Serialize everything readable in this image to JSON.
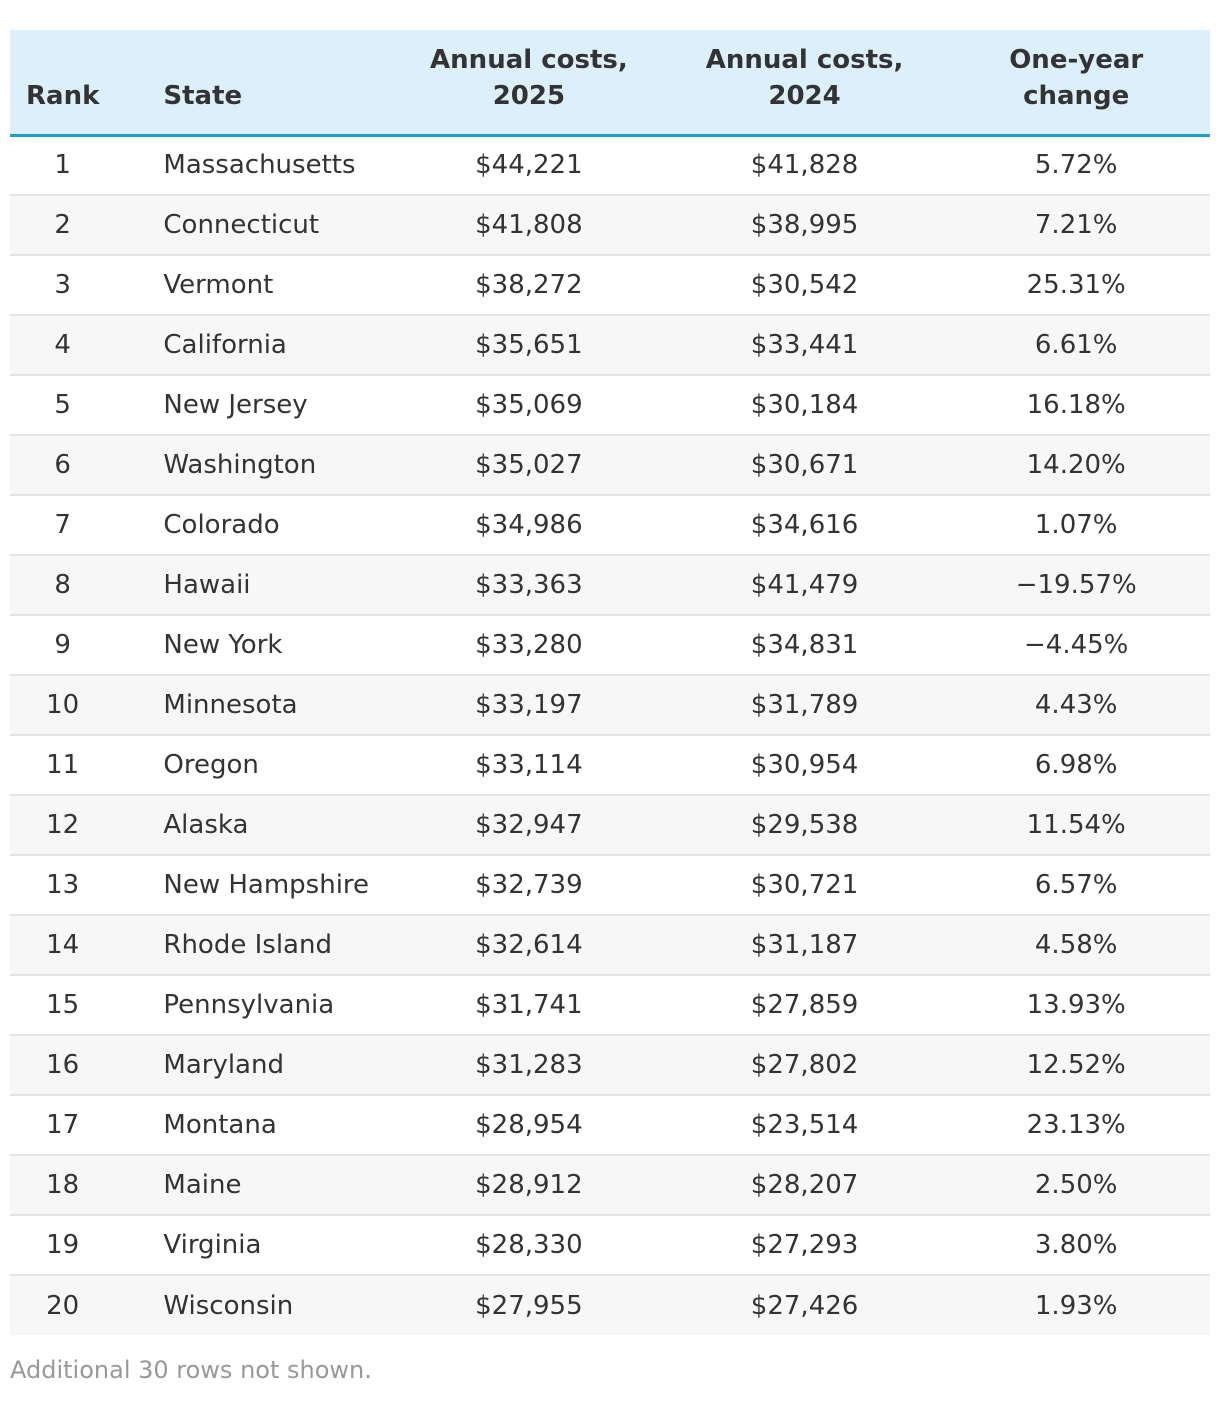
{
  "table": {
    "headers": {
      "rank": "Rank",
      "state": "State",
      "costs_2025_line1": "Annual costs,",
      "costs_2025_line2": "2025",
      "costs_2024_line1": "Annual costs,",
      "costs_2024_line2": "2024",
      "change_line1": "One-year",
      "change_line2": "change"
    },
    "rows": [
      {
        "rank": "1",
        "state": "Massachusetts",
        "cost_2025": "$44,221",
        "cost_2024": "$41,828",
        "change": "5.72%"
      },
      {
        "rank": "2",
        "state": "Connecticut",
        "cost_2025": "$41,808",
        "cost_2024": "$38,995",
        "change": "7.21%"
      },
      {
        "rank": "3",
        "state": "Vermont",
        "cost_2025": "$38,272",
        "cost_2024": "$30,542",
        "change": "25.31%"
      },
      {
        "rank": "4",
        "state": "California",
        "cost_2025": "$35,651",
        "cost_2024": "$33,441",
        "change": "6.61%"
      },
      {
        "rank": "5",
        "state": "New Jersey",
        "cost_2025": "$35,069",
        "cost_2024": "$30,184",
        "change": "16.18%"
      },
      {
        "rank": "6",
        "state": "Washington",
        "cost_2025": "$35,027",
        "cost_2024": "$30,671",
        "change": "14.20%"
      },
      {
        "rank": "7",
        "state": "Colorado",
        "cost_2025": "$34,986",
        "cost_2024": "$34,616",
        "change": "1.07%"
      },
      {
        "rank": "8",
        "state": "Hawaii",
        "cost_2025": "$33,363",
        "cost_2024": "$41,479",
        "change": "−19.57%"
      },
      {
        "rank": "9",
        "state": "New York",
        "cost_2025": "$33,280",
        "cost_2024": "$34,831",
        "change": "−4.45%"
      },
      {
        "rank": "10",
        "state": "Minnesota",
        "cost_2025": "$33,197",
        "cost_2024": "$31,789",
        "change": "4.43%"
      },
      {
        "rank": "11",
        "state": "Oregon",
        "cost_2025": "$33,114",
        "cost_2024": "$30,954",
        "change": "6.98%"
      },
      {
        "rank": "12",
        "state": "Alaska",
        "cost_2025": "$32,947",
        "cost_2024": "$29,538",
        "change": "11.54%"
      },
      {
        "rank": "13",
        "state": "New Hampshire",
        "cost_2025": "$32,739",
        "cost_2024": "$30,721",
        "change": "6.57%"
      },
      {
        "rank": "14",
        "state": "Rhode Island",
        "cost_2025": "$32,614",
        "cost_2024": "$31,187",
        "change": "4.58%"
      },
      {
        "rank": "15",
        "state": "Pennsylvania",
        "cost_2025": "$31,741",
        "cost_2024": "$27,859",
        "change": "13.93%"
      },
      {
        "rank": "16",
        "state": "Maryland",
        "cost_2025": "$31,283",
        "cost_2024": "$27,802",
        "change": "12.52%"
      },
      {
        "rank": "17",
        "state": "Montana",
        "cost_2025": "$28,954",
        "cost_2024": "$23,514",
        "change": "23.13%"
      },
      {
        "rank": "18",
        "state": "Maine",
        "cost_2025": "$28,912",
        "cost_2024": "$28,207",
        "change": "2.50%"
      },
      {
        "rank": "19",
        "state": "Virginia",
        "cost_2025": "$28,330",
        "cost_2024": "$27,293",
        "change": "3.80%"
      },
      {
        "rank": "20",
        "state": "Wisconsin",
        "cost_2025": "$27,955",
        "cost_2024": "$27,426",
        "change": "1.93%"
      }
    ]
  },
  "footnote": "Additional 30 rows not shown.",
  "colors": {
    "header_background": "#dcf0fc",
    "header_rule": "#1e9ad6",
    "stripe": "#f7f7f7",
    "text": "#333333",
    "footnote_text": "#999999"
  }
}
